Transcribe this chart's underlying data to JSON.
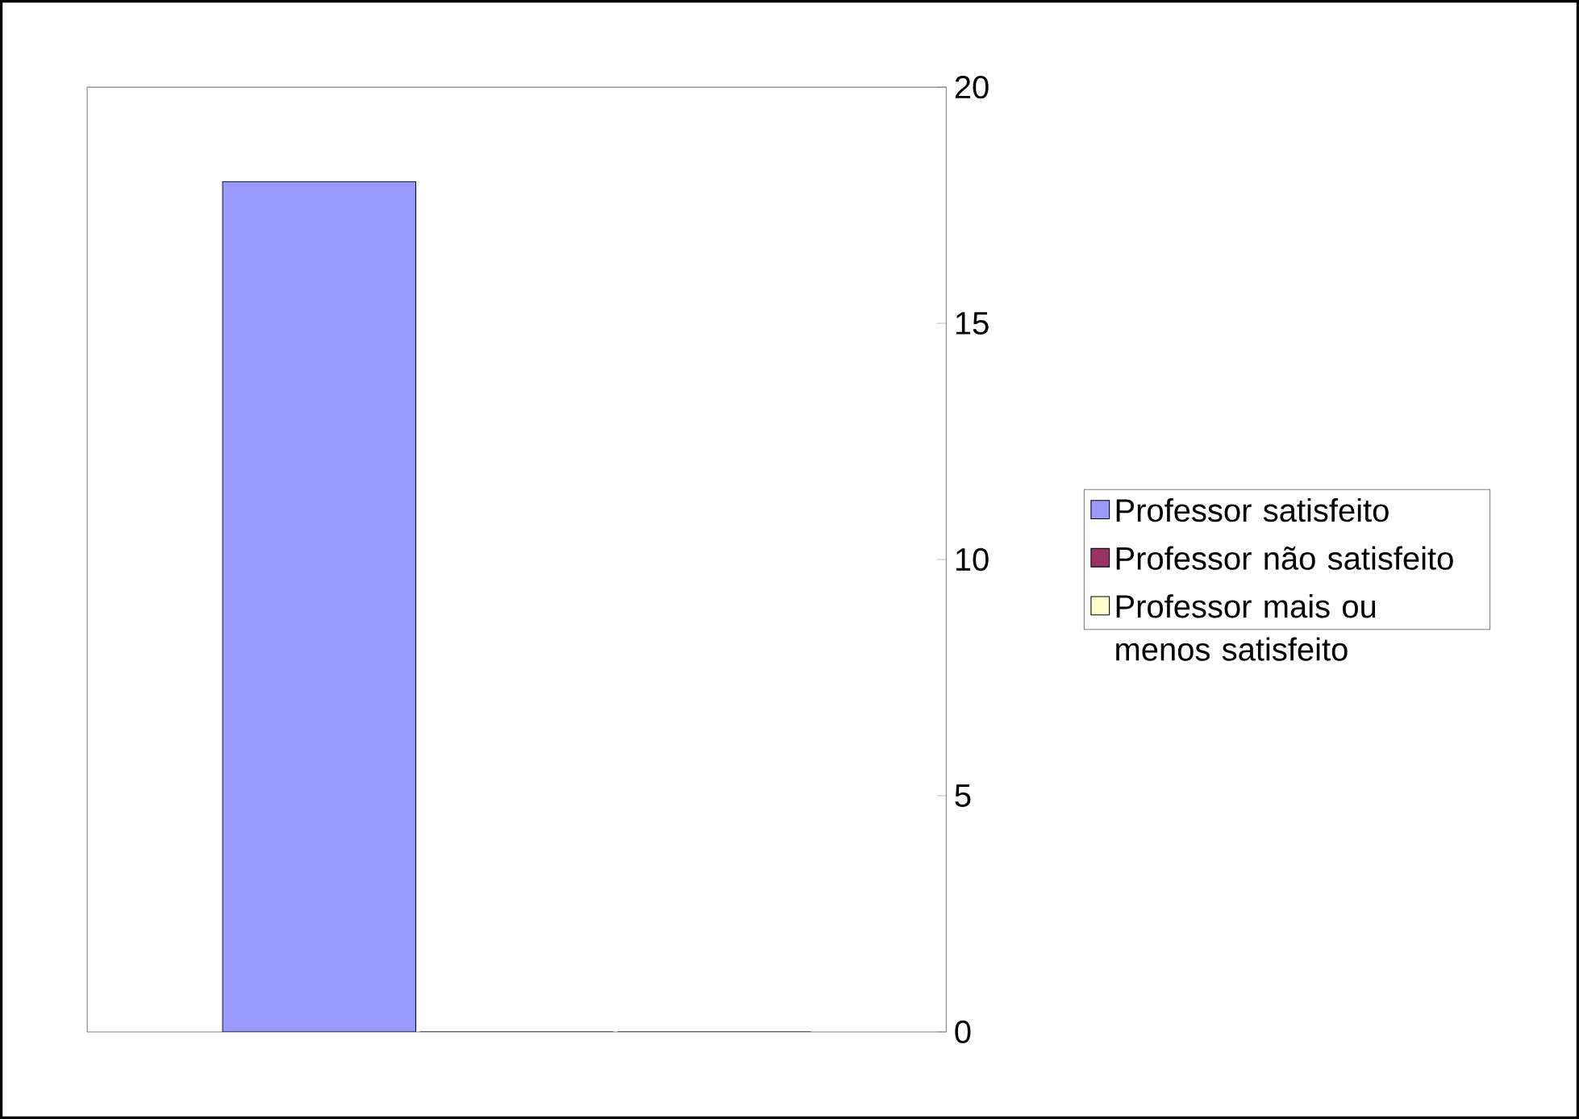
{
  "chart_data": {
    "type": "bar",
    "categories": [
      null
    ],
    "series": [
      {
        "name": "Professor satisfeito",
        "color": "#9999ff",
        "values": [
          18
        ]
      },
      {
        "name": "Professor não satisfeito",
        "color": "#993366",
        "values": [
          0
        ]
      },
      {
        "name": "Professor mais ou menos satisfeito",
        "color": "#ffffcc",
        "values": [
          0
        ]
      }
    ],
    "ylim": [
      0,
      20
    ],
    "yticks": [
      0,
      5,
      10,
      15,
      20
    ],
    "grid": false,
    "legend": "right"
  }
}
